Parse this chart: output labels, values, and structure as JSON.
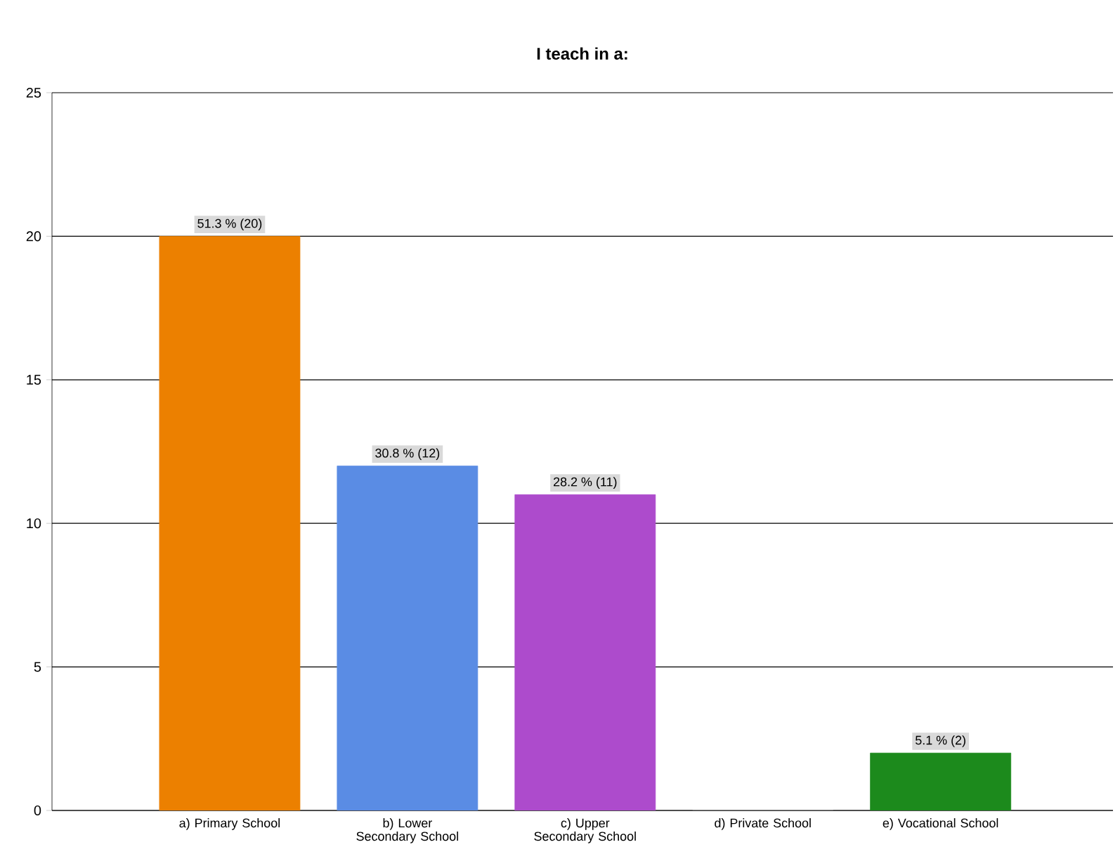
{
  "chart_data": {
    "type": "bar",
    "title": "I teach in a:",
    "categories": [
      "a) Primary School",
      "b) Lower Secondary School",
      "c) Upper Secondary School",
      "d) Private School",
      "e) Vocational School"
    ],
    "values": [
      20,
      12,
      11,
      0,
      2
    ],
    "colors": [
      "#ec8000",
      "#5a8ce4",
      "#ad4bcc",
      "#888888",
      "#1c8a1c"
    ],
    "value_labels": [
      "51.3 % (20)",
      "30.8 % (12)",
      "28.2 % (11)",
      null,
      "5.1 % (2)"
    ],
    "ylim": [
      0,
      25
    ],
    "yticks": [
      0,
      5,
      10,
      15,
      20,
      25
    ],
    "grid": "y"
  }
}
